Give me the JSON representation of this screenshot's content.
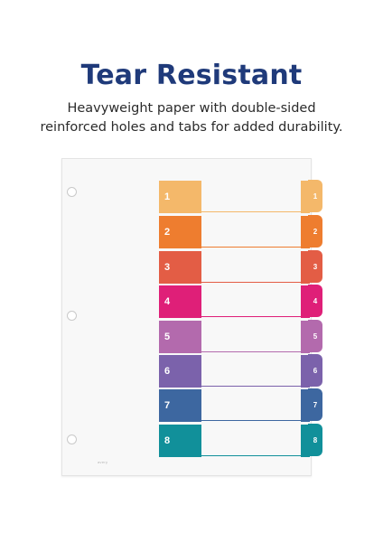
{
  "headline": "Tear Resistant",
  "subline": {
    "line1": "Heavyweight paper with double-sided",
    "line2": "reinforced holes and tabs for added durability."
  },
  "divider": {
    "brand_text": "avery",
    "tabs": [
      {
        "number": "1",
        "color": "#f4b86a"
      },
      {
        "number": "2",
        "color": "#ee7d2f"
      },
      {
        "number": "3",
        "color": "#e35d45"
      },
      {
        "number": "4",
        "color": "#df1f78"
      },
      {
        "number": "5",
        "color": "#b36aad"
      },
      {
        "number": "6",
        "color": "#7b62ab"
      },
      {
        "number": "7",
        "color": "#3d67a0"
      },
      {
        "number": "8",
        "color": "#11909a"
      }
    ]
  }
}
